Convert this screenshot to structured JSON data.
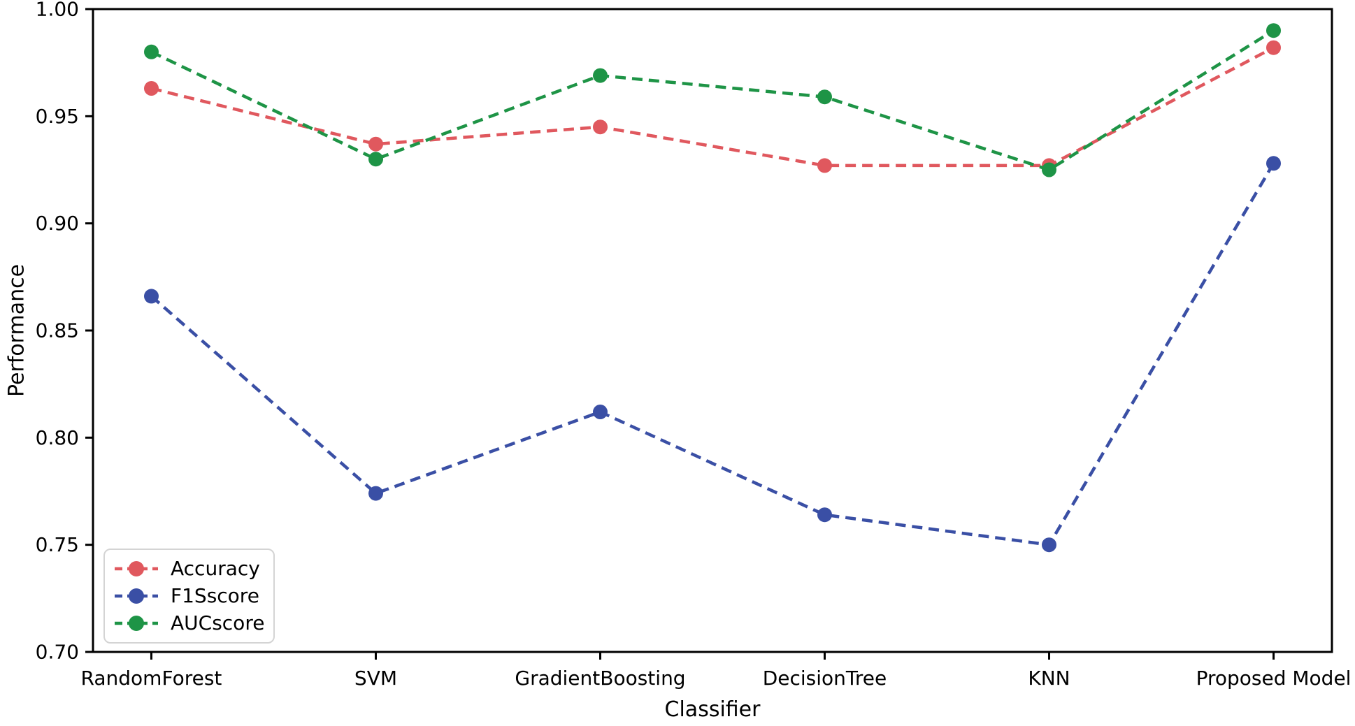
{
  "figure": {
    "background": "#ffffff",
    "axis_color": "#000000",
    "tick_label_color": "#000000"
  },
  "chart_data": {
    "type": "line",
    "title": "",
    "xlabel": "Classifier",
    "ylabel": "Performance",
    "categories": [
      "RandomForest",
      "SVM",
      "GradientBoosting",
      "DecisionTree",
      "KNN",
      "Proposed Model"
    ],
    "series": [
      {
        "name": "Accuracy",
        "color": "#e0585e",
        "marker": "circle",
        "linestyle": "dashed",
        "values": [
          0.963,
          0.937,
          0.945,
          0.927,
          0.927,
          0.982
        ]
      },
      {
        "name": "F1Sscore",
        "color": "#3a4fa5",
        "marker": "circle",
        "linestyle": "dashed",
        "values": [
          0.866,
          0.774,
          0.812,
          0.764,
          0.75,
          0.928
        ]
      },
      {
        "name": "AUCscore",
        "color": "#1e9446",
        "marker": "circle",
        "linestyle": "dashed",
        "values": [
          0.98,
          0.93,
          0.969,
          0.959,
          0.925,
          0.99
        ]
      }
    ],
    "ylim": [
      0.7,
      1.0
    ],
    "yticks": [
      0.7,
      0.75,
      0.8,
      0.85,
      0.9,
      0.95,
      1.0
    ],
    "grid": false,
    "legend_position": "lower-left"
  }
}
